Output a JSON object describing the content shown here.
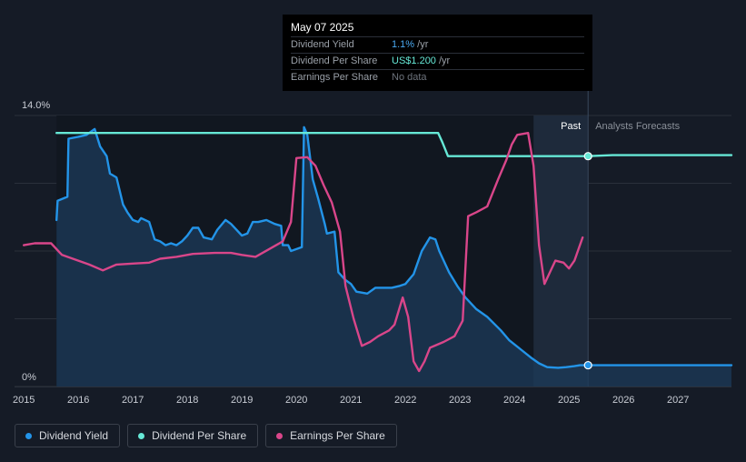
{
  "chart_data": {
    "type": "line",
    "y_axis": {
      "top_label": "14.0%",
      "bottom_label": "0%",
      "ylim": [
        0,
        14
      ]
    },
    "x_axis": {
      "tick_labels": [
        "2015",
        "2016",
        "2017",
        "2018",
        "2019",
        "2020",
        "2021",
        "2022",
        "2023",
        "2024",
        "2025",
        "2026",
        "2027"
      ],
      "xlim": [
        2014.83,
        2027.98
      ]
    },
    "regions": {
      "past_label": "Past",
      "forecast_label": "Analysts Forecasts",
      "past_band": [
        2024.35,
        2025.35
      ]
    },
    "series": [
      {
        "name": "Dividend Yield",
        "color": "#2394e8",
        "fill": true,
        "points": [
          [
            2015.6,
            8.6
          ],
          [
            2015.62,
            9.6
          ],
          [
            2015.8,
            9.8
          ],
          [
            2015.82,
            12.8
          ],
          [
            2016.0,
            12.9
          ],
          [
            2016.15,
            13.0
          ],
          [
            2016.3,
            13.3
          ],
          [
            2016.4,
            12.4
          ],
          [
            2016.52,
            11.9
          ],
          [
            2016.58,
            11.0
          ],
          [
            2016.7,
            10.8
          ],
          [
            2016.82,
            9.4
          ],
          [
            2016.9,
            9.0
          ],
          [
            2017.0,
            8.6
          ],
          [
            2017.1,
            8.5
          ],
          [
            2017.15,
            8.7
          ],
          [
            2017.3,
            8.5
          ],
          [
            2017.4,
            7.6
          ],
          [
            2017.5,
            7.5
          ],
          [
            2017.6,
            7.3
          ],
          [
            2017.7,
            7.4
          ],
          [
            2017.8,
            7.3
          ],
          [
            2017.9,
            7.5
          ],
          [
            2018.0,
            7.8
          ],
          [
            2018.1,
            8.2
          ],
          [
            2018.2,
            8.2
          ],
          [
            2018.3,
            7.7
          ],
          [
            2018.45,
            7.6
          ],
          [
            2018.55,
            8.1
          ],
          [
            2018.7,
            8.6
          ],
          [
            2018.8,
            8.4
          ],
          [
            2018.9,
            8.1
          ],
          [
            2019.0,
            7.8
          ],
          [
            2019.1,
            7.9
          ],
          [
            2019.2,
            8.5
          ],
          [
            2019.3,
            8.5
          ],
          [
            2019.45,
            8.6
          ],
          [
            2019.6,
            8.4
          ],
          [
            2019.72,
            8.3
          ],
          [
            2019.75,
            7.3
          ],
          [
            2019.85,
            7.3
          ],
          [
            2019.9,
            7.0
          ],
          [
            2020.0,
            7.1
          ],
          [
            2020.1,
            7.2
          ],
          [
            2020.14,
            13.4
          ],
          [
            2020.2,
            13.0
          ],
          [
            2020.3,
            10.7
          ],
          [
            2020.4,
            9.7
          ],
          [
            2020.52,
            8.4
          ],
          [
            2020.56,
            7.9
          ],
          [
            2020.7,
            8.0
          ],
          [
            2020.75,
            6.5
          ],
          [
            2020.77,
            5.9
          ],
          [
            2020.9,
            5.5
          ],
          [
            2021.0,
            5.3
          ],
          [
            2021.1,
            4.9
          ],
          [
            2021.3,
            4.8
          ],
          [
            2021.45,
            5.1
          ],
          [
            2021.6,
            5.1
          ],
          [
            2021.75,
            5.1
          ],
          [
            2021.9,
            5.2
          ],
          [
            2022.0,
            5.3
          ],
          [
            2022.15,
            5.8
          ],
          [
            2022.3,
            7.0
          ],
          [
            2022.45,
            7.7
          ],
          [
            2022.55,
            7.6
          ],
          [
            2022.62,
            7.0
          ],
          [
            2022.8,
            5.9
          ],
          [
            2022.95,
            5.2
          ],
          [
            2023.1,
            4.6
          ],
          [
            2023.3,
            4.0
          ],
          [
            2023.5,
            3.6
          ],
          [
            2023.75,
            2.9
          ],
          [
            2023.9,
            2.4
          ],
          [
            2024.1,
            1.95
          ],
          [
            2024.3,
            1.5
          ],
          [
            2024.45,
            1.2
          ],
          [
            2024.6,
            1.0
          ],
          [
            2024.8,
            0.97
          ],
          [
            2024.95,
            1.0
          ],
          [
            2025.1,
            1.05
          ],
          [
            2025.2,
            1.1
          ],
          [
            2025.35,
            1.1
          ],
          [
            2025.7,
            1.1
          ],
          [
            2026.5,
            1.1
          ],
          [
            2027.5,
            1.1
          ],
          [
            2027.98,
            1.1
          ]
        ]
      },
      {
        "name": "Dividend Per Share",
        "color": "#66e8d6",
        "fill": false,
        "points": [
          [
            2015.6,
            13.1
          ],
          [
            2016.5,
            13.1
          ],
          [
            2018.0,
            13.1
          ],
          [
            2020.0,
            13.1
          ],
          [
            2022.0,
            13.1
          ],
          [
            2022.6,
            13.1
          ],
          [
            2022.68,
            12.6
          ],
          [
            2022.78,
            11.9
          ],
          [
            2023.5,
            11.9
          ],
          [
            2024.4,
            11.9
          ],
          [
            2025.0,
            11.9
          ],
          [
            2025.35,
            11.9
          ],
          [
            2025.8,
            11.95
          ],
          [
            2026.5,
            11.95
          ],
          [
            2027.98,
            11.95
          ]
        ]
      },
      {
        "name": "Earnings Per Share",
        "color": "#d9468a",
        "fill": false,
        "points": [
          [
            2015.0,
            7.3
          ],
          [
            2015.2,
            7.4
          ],
          [
            2015.5,
            7.4
          ],
          [
            2015.7,
            6.8
          ],
          [
            2015.9,
            6.6
          ],
          [
            2016.2,
            6.3
          ],
          [
            2016.45,
            6.0
          ],
          [
            2016.7,
            6.3
          ],
          [
            2017.0,
            6.35
          ],
          [
            2017.3,
            6.4
          ],
          [
            2017.5,
            6.6
          ],
          [
            2017.8,
            6.7
          ],
          [
            2018.1,
            6.85
          ],
          [
            2018.5,
            6.9
          ],
          [
            2018.8,
            6.9
          ],
          [
            2019.0,
            6.8
          ],
          [
            2019.25,
            6.7
          ],
          [
            2019.5,
            7.1
          ],
          [
            2019.75,
            7.5
          ],
          [
            2019.9,
            8.5
          ],
          [
            2020.0,
            11.8
          ],
          [
            2020.2,
            11.85
          ],
          [
            2020.35,
            11.4
          ],
          [
            2020.5,
            10.4
          ],
          [
            2020.65,
            9.5
          ],
          [
            2020.8,
            8.0
          ],
          [
            2020.9,
            5.2
          ],
          [
            2021.05,
            3.5
          ],
          [
            2021.2,
            2.1
          ],
          [
            2021.35,
            2.3
          ],
          [
            2021.5,
            2.6
          ],
          [
            2021.7,
            2.9
          ],
          [
            2021.8,
            3.2
          ],
          [
            2021.95,
            4.6
          ],
          [
            2022.05,
            3.6
          ],
          [
            2022.15,
            1.3
          ],
          [
            2022.25,
            0.8
          ],
          [
            2022.35,
            1.3
          ],
          [
            2022.45,
            2.0
          ],
          [
            2022.7,
            2.3
          ],
          [
            2022.9,
            2.6
          ],
          [
            2023.05,
            3.4
          ],
          [
            2023.15,
            8.8
          ],
          [
            2023.3,
            9.0
          ],
          [
            2023.5,
            9.3
          ],
          [
            2023.7,
            10.7
          ],
          [
            2023.85,
            11.7
          ],
          [
            2023.95,
            12.5
          ],
          [
            2024.05,
            13.0
          ],
          [
            2024.25,
            13.1
          ],
          [
            2024.35,
            11.4
          ],
          [
            2024.45,
            7.3
          ],
          [
            2024.55,
            5.3
          ],
          [
            2024.65,
            5.9
          ],
          [
            2024.75,
            6.5
          ],
          [
            2024.9,
            6.4
          ],
          [
            2025.0,
            6.1
          ],
          [
            2025.1,
            6.5
          ],
          [
            2025.25,
            7.7
          ]
        ]
      }
    ],
    "markers": [
      {
        "series": "Dividend Per Share",
        "x": 2025.35,
        "y": 11.9
      },
      {
        "series": "Dividend Yield",
        "x": 2025.35,
        "y": 1.1
      }
    ]
  },
  "tooltip": {
    "date": "May 07 2025",
    "rows": [
      {
        "label": "Dividend Yield",
        "value": "1.1%",
        "unit": " /yr"
      },
      {
        "label": "Dividend Per Share",
        "value": "US$1.200",
        "unit": " /yr"
      },
      {
        "label": "Earnings Per Share",
        "value": "No data",
        "unit": ""
      }
    ]
  },
  "legend": [
    {
      "label": "Dividend Yield",
      "color": "#2394e8"
    },
    {
      "label": "Dividend Per Share",
      "color": "#66e8d6"
    },
    {
      "label": "Earnings Per Share",
      "color": "#d9468a"
    }
  ]
}
